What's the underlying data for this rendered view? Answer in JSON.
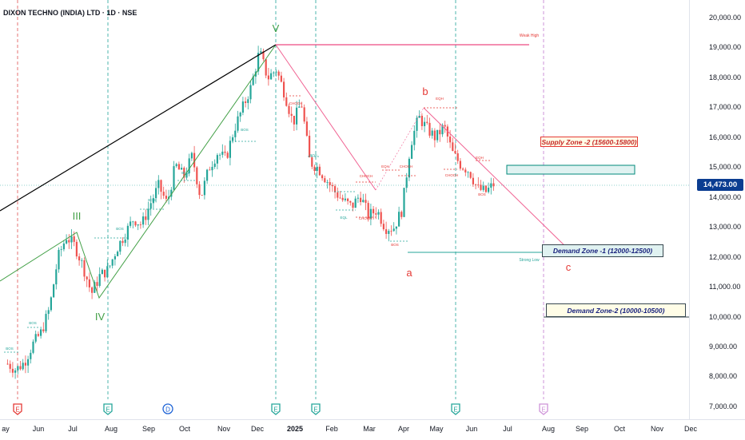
{
  "header": {
    "title": "DIXON TECHNO (INDIA) LTD · 1D · NSE"
  },
  "colors": {
    "up": "#26a69a",
    "down": "#ef5350",
    "elliott_green": "#43a047",
    "abc_red": "#e91e63",
    "trend_black": "#000000",
    "last_price_bg": "#0b3d91"
  },
  "price_scale": {
    "ticks": [
      "20,000.00",
      "19,000.00",
      "18,000.00",
      "17,000.00",
      "16,000.00",
      "15,000.00",
      "14,000.00",
      "13,000.00",
      "12,000.00",
      "11,000.00",
      "10,000.00",
      "9,000.00",
      "8,000.00",
      "7,000.00"
    ],
    "last_price": "14,473.00"
  },
  "time_axis": {
    "labels": [
      "ay",
      "Jun",
      "Jul",
      "Aug",
      "Sep",
      "Oct",
      "Nov",
      "Dec",
      "2025",
      "Feb",
      "Mar",
      "Apr",
      "May",
      "Jun",
      "Jul",
      "Aug",
      "Sep",
      "Oct",
      "Nov",
      "Dec"
    ]
  },
  "event_markers": [
    {
      "letter": "E",
      "kind": "earnings-past"
    },
    {
      "letter": "E",
      "kind": "earnings"
    },
    {
      "letter": "D",
      "kind": "dividend"
    },
    {
      "letter": "E",
      "kind": "earnings"
    },
    {
      "letter": "E",
      "kind": "earnings"
    },
    {
      "letter": "E",
      "kind": "earnings"
    },
    {
      "letter": "E",
      "kind": "earnings-upcoming"
    }
  ],
  "wave_labels": {
    "iii": "III",
    "iv": "IV",
    "v": "V",
    "a": "a",
    "b": "b",
    "c": "c"
  },
  "annotations": {
    "weak_high": "Weak High",
    "strong_low": "Strong Low",
    "bos": "BOS",
    "choch": "CHOCH",
    "eqh": "EQH",
    "eql": "EQL"
  },
  "zones": {
    "supply": "Supply Zone -2 (15600-15800)",
    "demand1": "Demand Zone -1 (12000-12500)",
    "demand2": "Demand Zone-2 (10000-10500)"
  },
  "chart_data": {
    "type": "candlestick",
    "symbol": "DIXON TECHNO (INDIA) LTD",
    "interval": "1D",
    "exchange": "NSE",
    "ylim": [
      6800,
      20400
    ],
    "last_price": 14473,
    "wave_points": [
      {
        "label": "III",
        "date": "2024-07-01",
        "price": 12900
      },
      {
        "label": "IV",
        "date": "2024-07-25",
        "price": 10650
      },
      {
        "label": "V",
        "date": "2024-12-16",
        "price": 19150
      },
      {
        "label": "a",
        "date": "2025-04-07",
        "price": 12150
      },
      {
        "label": "b",
        "date": "2025-04-25",
        "price": 17050
      },
      {
        "label": "c (projected)",
        "date": "2025-07-30",
        "price": 12300
      }
    ],
    "levels": [
      {
        "name": "Weak High",
        "price": 19150
      },
      {
        "name": "Strong Low",
        "price": 12150
      }
    ],
    "zones": [
      {
        "name": "Supply Zone -2",
        "low": 15600,
        "high": 15800
      },
      {
        "name": "Demand Zone -1",
        "low": 12000,
        "high": 12500
      },
      {
        "name": "Demand Zone-2",
        "low": 10000,
        "high": 10500
      }
    ],
    "price_path": [
      [
        "2024-05-17",
        8450
      ],
      [
        "2024-05-24",
        8250
      ],
      [
        "2024-05-31",
        8500
      ],
      [
        "2024-06-07",
        9100
      ],
      [
        "2024-06-14",
        9500
      ],
      [
        "2024-06-21",
        10300
      ],
      [
        "2024-06-28",
        12000
      ],
      [
        "2024-07-05",
        12700
      ],
      [
        "2024-07-12",
        12400
      ],
      [
        "2024-07-19",
        11700
      ],
      [
        "2024-07-26",
        10800
      ],
      [
        "2024-08-02",
        11400
      ],
      [
        "2024-08-09",
        11600
      ],
      [
        "2024-08-16",
        12300
      ],
      [
        "2024-08-23",
        12800
      ],
      [
        "2024-08-30",
        13300
      ],
      [
        "2024-09-06",
        13100
      ],
      [
        "2024-09-13",
        13800
      ],
      [
        "2024-09-20",
        14400
      ],
      [
        "2024-09-27",
        13800
      ],
      [
        "2024-10-04",
        15100
      ],
      [
        "2024-10-11",
        14700
      ],
      [
        "2024-10-18",
        15400
      ],
      [
        "2024-10-25",
        14000
      ],
      [
        "2024-11-01",
        15000
      ],
      [
        "2024-11-08",
        15500
      ],
      [
        "2024-11-15",
        15300
      ],
      [
        "2024-11-22",
        16300
      ],
      [
        "2024-11-29",
        17000
      ],
      [
        "2024-12-06",
        17700
      ],
      [
        "2024-12-13",
        18900
      ],
      [
        "2024-12-20",
        18000
      ],
      [
        "2024-12-27",
        18300
      ],
      [
        "2025-01-03",
        17500
      ],
      [
        "2025-01-10",
        16500
      ],
      [
        "2025-01-17",
        17200
      ],
      [
        "2025-01-24",
        15200
      ],
      [
        "2025-01-31",
        15000
      ],
      [
        "2025-02-07",
        14600
      ],
      [
        "2025-02-14",
        14200
      ],
      [
        "2025-02-21",
        13900
      ],
      [
        "2025-02-28",
        13700
      ],
      [
        "2025-03-07",
        14100
      ],
      [
        "2025-03-14",
        13400
      ],
      [
        "2025-03-21",
        13600
      ],
      [
        "2025-03-28",
        13000
      ],
      [
        "2025-04-04",
        13000
      ],
      [
        "2025-04-11",
        13600
      ],
      [
        "2025-04-18",
        15800
      ],
      [
        "2025-04-25",
        16700
      ],
      [
        "2025-05-02",
        16300
      ],
      [
        "2025-05-09",
        16000
      ],
      [
        "2025-05-16",
        16400
      ],
      [
        "2025-05-23",
        15500
      ],
      [
        "2025-05-30",
        15100
      ],
      [
        "2025-06-06",
        14900
      ],
      [
        "2025-06-13",
        14300
      ],
      [
        "2025-06-20",
        14200
      ],
      [
        "2025-06-27",
        14473
      ]
    ]
  }
}
